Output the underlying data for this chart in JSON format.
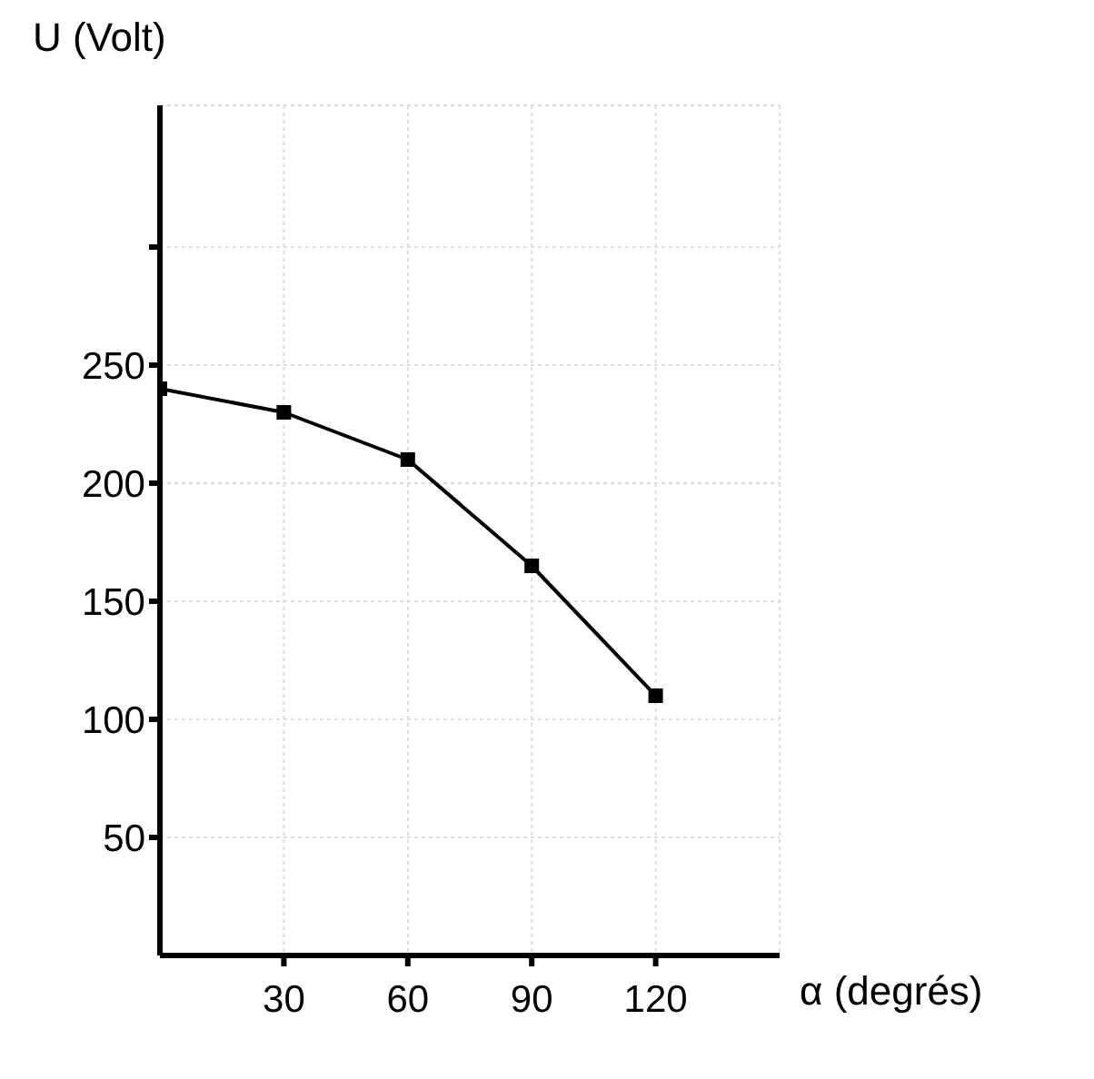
{
  "chart_data": {
    "type": "line",
    "ylabel": "U (Volt)",
    "xlabel": "α  (degrés)",
    "x": [
      0,
      30,
      60,
      90,
      120
    ],
    "series": [
      {
        "color": "#000000",
        "values": [
          240,
          230,
          210,
          165,
          110
        ]
      }
    ],
    "xlim": [
      0,
      150
    ],
    "xticks": [
      30,
      60,
      90,
      120
    ],
    "ylim": [
      0,
      360
    ],
    "yticks": [
      50,
      100,
      150,
      200,
      250,
      {
        "value": 300,
        "label": null
      }
    ],
    "grid": true,
    "marker": "square",
    "line_style": "solid"
  }
}
